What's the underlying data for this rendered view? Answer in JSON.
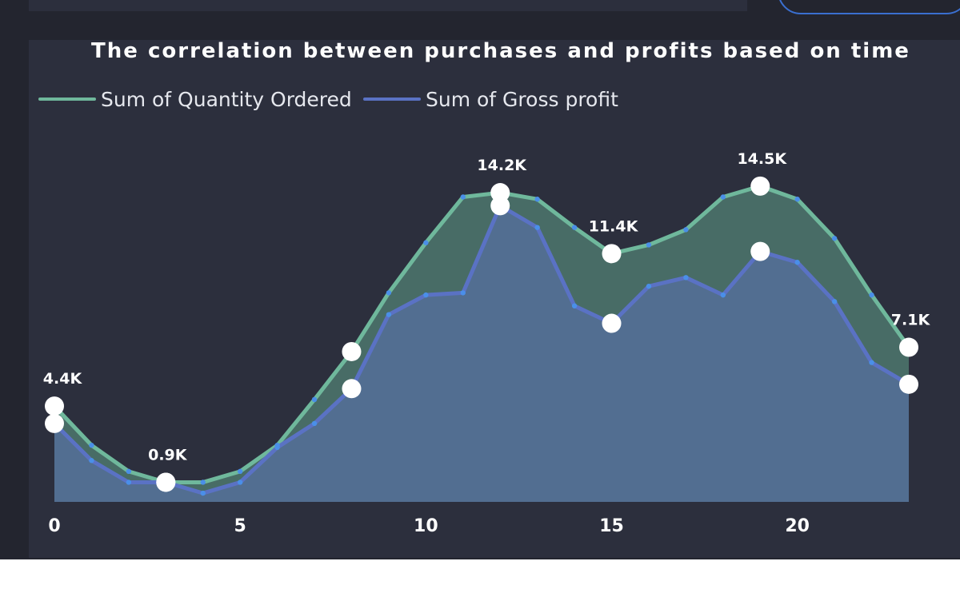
{
  "chart_data": {
    "type": "area",
    "title": "The correlation between purchases and profits based on time",
    "x": [
      0,
      1,
      2,
      3,
      4,
      5,
      6,
      7,
      8,
      9,
      10,
      11,
      12,
      13,
      14,
      15,
      16,
      17,
      18,
      19,
      20,
      21,
      22,
      23
    ],
    "xticks": [
      0,
      5,
      10,
      15,
      20
    ],
    "ylim": [
      0,
      16
    ],
    "series": [
      {
        "name": "Sum of Quantity Ordered",
        "color": "#6fb89c",
        "fill": "#4a7068",
        "values": [
          4.4,
          2.6,
          1.4,
          0.9,
          0.9,
          1.4,
          2.6,
          4.7,
          6.9,
          9.6,
          11.9,
          14.0,
          14.2,
          13.9,
          12.6,
          11.4,
          11.8,
          12.5,
          14.0,
          14.5,
          13.9,
          12.1,
          9.5,
          7.1
        ]
      },
      {
        "name": "Sum of Gross profit",
        "color": "#5a72c4",
        "fill": "#536f93",
        "values": [
          3.6,
          1.9,
          0.9,
          0.9,
          0.4,
          0.9,
          2.5,
          3.6,
          5.2,
          8.6,
          9.5,
          9.6,
          13.6,
          12.6,
          9.0,
          8.2,
          9.9,
          10.3,
          9.5,
          11.5,
          11.0,
          9.2,
          6.4,
          5.4
        ]
      }
    ],
    "data_labels": [
      {
        "x": 0,
        "text": "4.4K"
      },
      {
        "x": 3,
        "text": "0.9K"
      },
      {
        "x": 12,
        "text": "14.2K"
      },
      {
        "x": 15,
        "text": "11.4K"
      },
      {
        "x": 19,
        "text": "14.5K"
      },
      {
        "x": 23,
        "text": "7.1K"
      }
    ],
    "highlight_x": [
      0,
      3,
      8,
      12,
      15,
      19,
      23
    ]
  }
}
